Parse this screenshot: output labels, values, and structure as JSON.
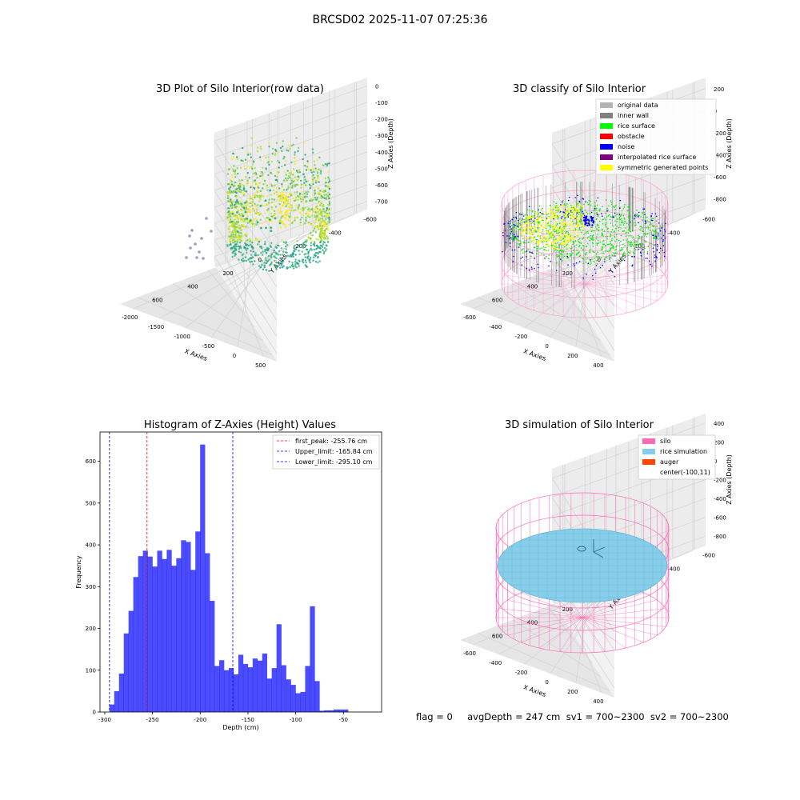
{
  "suptitle": "BRCSD02 2025-11-07 07:25:36",
  "panels": {
    "raw": {
      "title": "3D Plot of Silo Interior(row data)",
      "xlabel": "X Axies",
      "ylabel": "Y Axies",
      "zlabel": "Z Axies (Depth)",
      "xticks": [
        "-2000",
        "-1500",
        "-1000",
        "-500",
        "0",
        "500"
      ],
      "yticks": [
        "-600",
        "-400",
        "-200",
        "0",
        "200",
        "400",
        "600"
      ],
      "zticks": [
        "0",
        "-100",
        "-200",
        "-300",
        "-400",
        "-500",
        "-600",
        "-700"
      ]
    },
    "classify": {
      "title": "3D classify of Silo Interior",
      "xlabel": "X Axies",
      "ylabel": "Y Axies",
      "zlabel": "Z Axies (Depth)",
      "xticks": [
        "-600",
        "-400",
        "-200",
        "0",
        "200",
        "400"
      ],
      "yticks": [
        "-600",
        "-400",
        "-200",
        "0",
        "200",
        "400",
        "600"
      ],
      "zticks": [
        "200",
        "0",
        "-200",
        "-400",
        "-600",
        "-800"
      ],
      "legend": [
        {
          "label": "original data",
          "color": "#b3b3b3"
        },
        {
          "label": "inner wall",
          "color": "#808080"
        },
        {
          "label": "rice surface",
          "color": "#00ff00"
        },
        {
          "label": "obstacle",
          "color": "#ff0000"
        },
        {
          "label": "noise",
          "color": "#0000ff"
        },
        {
          "label": "interpolated rice surface",
          "color": "#800080"
        },
        {
          "label": "symmetric generated points",
          "color": "#ffff00"
        }
      ]
    },
    "simulation": {
      "title": "3D simulation of Silo Interior",
      "xlabel": "X Axies",
      "ylabel": "Y Axies",
      "zlabel": "Z Axies (Depth)",
      "xticks": [
        "-600",
        "-400",
        "-200",
        "0",
        "200",
        "400"
      ],
      "yticks": [
        "-600",
        "-400",
        "-200",
        "0",
        "200",
        "400",
        "600"
      ],
      "zticks": [
        "400",
        "200",
        "0",
        "-200",
        "-400",
        "-600",
        "-800"
      ],
      "legend": [
        {
          "label": "silo",
          "color": "#ff69b4"
        },
        {
          "label": "rice simulation",
          "color": "#87ceeb"
        },
        {
          "label": "auger",
          "color": "#ff4500"
        },
        {
          "label": "center(-100,11)",
          "color": ""
        }
      ]
    }
  },
  "chart_data": {
    "type": "bar",
    "title": "Histogram of Z-Axies (Height) Values",
    "xlabel": "Depth (cm)",
    "ylabel": "Frequency",
    "xlim": [
      -305,
      -10
    ],
    "ylim": [
      0,
      670
    ],
    "xticks": [
      -300,
      -250,
      -200,
      -150,
      -100,
      -50
    ],
    "yticks": [
      0,
      100,
      200,
      300,
      400,
      500,
      600
    ],
    "bin_start": -295.1,
    "bin_width": 5.0,
    "values": [
      18,
      50,
      92,
      188,
      242,
      323,
      373,
      386,
      372,
      348,
      386,
      366,
      388,
      350,
      368,
      411,
      407,
      340,
      432,
      640,
      380,
      266,
      110,
      124,
      100,
      105,
      90,
      137,
      115,
      107,
      128,
      123,
      140,
      80,
      105,
      210,
      112,
      78,
      65,
      45,
      48,
      110,
      253,
      74,
      3,
      4,
      4,
      6,
      6,
      6
    ],
    "bar_color": "#0000ff",
    "bar_alpha": 0.7,
    "lines": [
      {
        "label": "first_peak: -255.76 cm",
        "x": -255.76,
        "color": "#ff0000"
      },
      {
        "label": "Upper_limit: -165.84 cm",
        "x": -165.84,
        "color": "#0000ff"
      },
      {
        "label": "Lower_limit: -295.10 cm",
        "x": -295.1,
        "color": "#0000ff"
      }
    ],
    "legend_position": "top-right"
  },
  "footer": "flag = 0     avgDepth = 247 cm  sv1 = 700~2300  sv2 = 700~2300"
}
